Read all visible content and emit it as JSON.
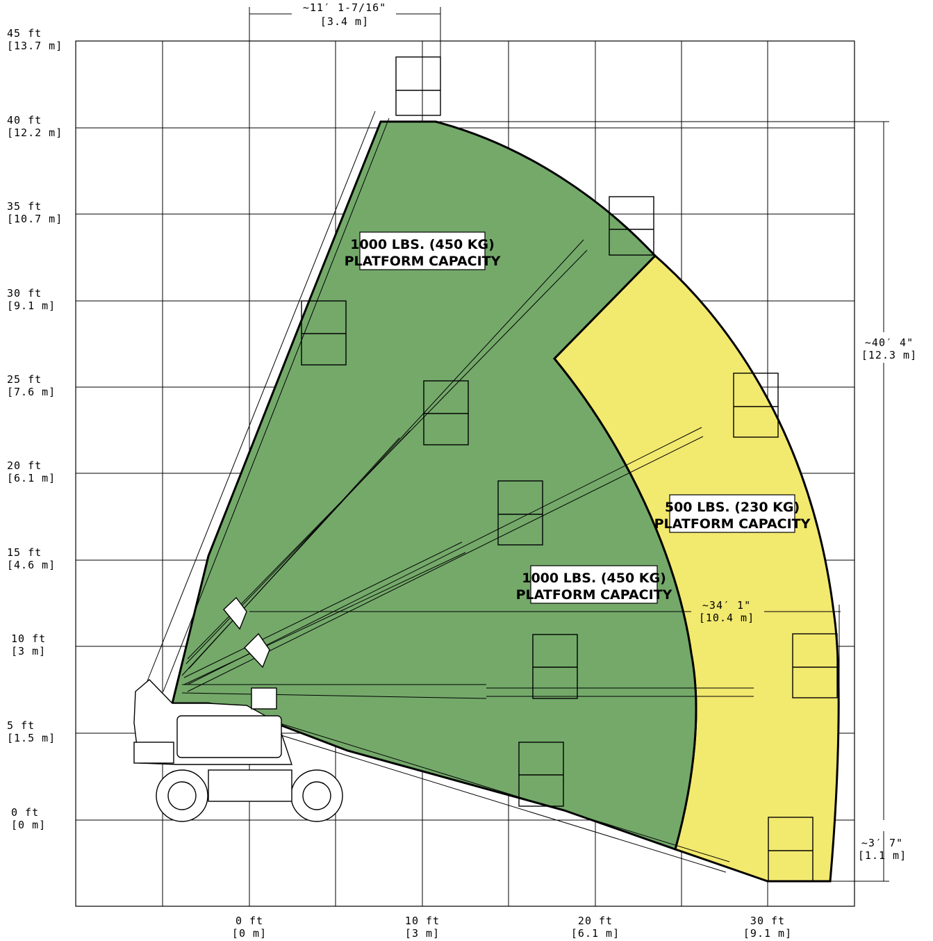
{
  "y_axis": {
    "ticks": [
      {
        "ft": "45 ft",
        "m": "[13.7 m]"
      },
      {
        "ft": "40 ft",
        "m": "[12.2 m]"
      },
      {
        "ft": "35 ft",
        "m": "[10.7 m]"
      },
      {
        "ft": "30 ft",
        "m": "[9.1 m]"
      },
      {
        "ft": "25 ft",
        "m": "[7.6 m]"
      },
      {
        "ft": "20 ft",
        "m": "[6.1 m]"
      },
      {
        "ft": "15 ft",
        "m": "[4.6 m]"
      },
      {
        "ft": "10 ft",
        "m": "[3 m]"
      },
      {
        "ft": "5 ft",
        "m": "[1.5 m]"
      },
      {
        "ft": "0 ft",
        "m": "[0 m]"
      }
    ]
  },
  "x_axis": {
    "ticks": [
      {
        "ft": "0 ft",
        "m": "[0 m]"
      },
      {
        "ft": "10 ft",
        "m": "[3 m]"
      },
      {
        "ft": "20 ft",
        "m": "[6.1 m]"
      },
      {
        "ft": "30 ft",
        "m": "[9.1 m]"
      }
    ]
  },
  "dimensions": {
    "top_offset": {
      "ft": "~11′ 1-7/16\"",
      "m": "[3.4 m]"
    },
    "height_span": {
      "ft": "~40′ 4\"",
      "m": "[12.3 m]"
    },
    "horizontal_reach": {
      "ft": "~34′ 1\"",
      "m": "[10.4 m]"
    },
    "below_grade": {
      "ft": "~3′ 7\"",
      "m": "[1.1 m]"
    }
  },
  "zones": [
    {
      "line1": "1000 LBS. (450 KG)",
      "line2": "PLATFORM CAPACITY",
      "color": "#74a96a"
    },
    {
      "line1": "1000 LBS. (450 KG)",
      "line2": "PLATFORM CAPACITY",
      "color": "#74a96a"
    },
    {
      "line1": "500 LBS. (230 KG)",
      "line2": "PLATFORM CAPACITY",
      "color": "#f2e96f"
    }
  ]
}
